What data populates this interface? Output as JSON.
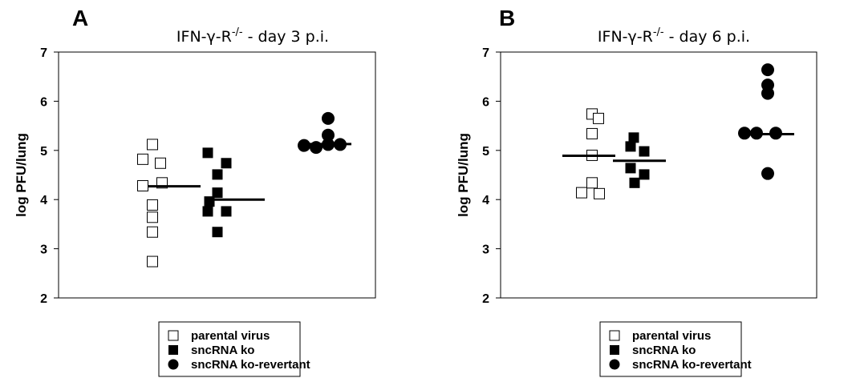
{
  "chart_data": [
    {
      "type": "scatter",
      "panel": "A",
      "title": "IFN-γ-R",
      "title_superscript": "-/-",
      "title_suffix": " - day 3 p.i.",
      "ylabel": "log PFU/lung",
      "ylim": [
        2,
        7
      ],
      "yticks": [
        "2",
        "3",
        "4",
        "5",
        "6",
        "7"
      ],
      "grid": false,
      "legend_position": "bottom",
      "series": [
        {
          "name": "parental virus",
          "marker": "open-square",
          "color": "#ffffff",
          "values": [
            5.12,
            4.82,
            4.74,
            4.34,
            4.28,
            3.89,
            3.64,
            3.34,
            2.74
          ],
          "median": 4.27
        },
        {
          "name": "sncRNA ko",
          "marker": "filled-square",
          "color": "#000000",
          "values": [
            4.95,
            4.74,
            4.51,
            4.14,
            3.96,
            3.76,
            3.76,
            3.34
          ],
          "median": 4.0
        },
        {
          "name": "sncRNA ko-revertant",
          "marker": "filled-circle",
          "color": "#000000",
          "values": [
            5.65,
            5.31,
            5.12,
            5.1,
            5.06,
            5.12
          ],
          "median": 5.13
        }
      ]
    },
    {
      "type": "scatter",
      "panel": "B",
      "title": "IFN-γ-R",
      "title_superscript": "-/-",
      "title_suffix": " - day 6 p.i.",
      "ylabel": "log PFU/lung",
      "ylim": [
        2,
        7
      ],
      "yticks": [
        "2",
        "3",
        "4",
        "5",
        "6",
        "7"
      ],
      "grid": false,
      "legend_position": "bottom",
      "series": [
        {
          "name": "parental virus",
          "marker": "open-square",
          "color": "#ffffff",
          "values": [
            5.74,
            5.65,
            5.34,
            4.9,
            4.34,
            4.14,
            4.12
          ],
          "median": 4.89
        },
        {
          "name": "sncRNA ko",
          "marker": "filled-square",
          "color": "#000000",
          "values": [
            5.26,
            5.08,
            4.98,
            4.64,
            4.51,
            4.34
          ],
          "median": 4.79
        },
        {
          "name": "sncRNA ko-revertant",
          "marker": "filled-circle",
          "color": "#000000",
          "values": [
            6.64,
            6.33,
            6.16,
            5.35,
            5.35,
            5.35,
            4.53
          ],
          "median": 5.33
        }
      ]
    }
  ]
}
